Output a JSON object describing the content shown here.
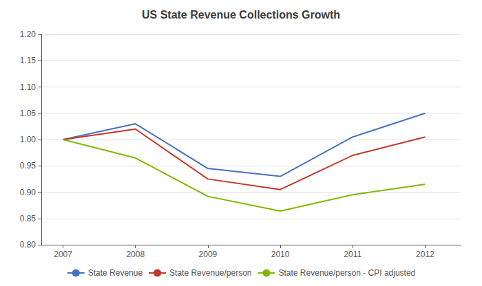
{
  "chart_data": {
    "type": "line",
    "title": "US State Revenue Collections Growth",
    "x": [
      2007,
      2008,
      2009,
      2010,
      2011,
      2012
    ],
    "xlim": [
      2006.7,
      2012.5
    ],
    "xticks": [
      2007,
      2008,
      2009,
      2010,
      2011,
      2012
    ],
    "series": [
      {
        "name": "State Revenue",
        "color": "#4472C4",
        "values": [
          1.0,
          1.03,
          0.945,
          0.93,
          1.005,
          1.05
        ]
      },
      {
        "name": "State Revenue/person",
        "color": "#C0392B",
        "values": [
          1.0,
          1.02,
          0.925,
          0.905,
          0.97,
          1.005
        ]
      },
      {
        "name": "State Revenue/person - CPI adjusted",
        "color": "#7FBA00",
        "values": [
          1.0,
          0.965,
          0.892,
          0.864,
          0.895,
          0.915
        ]
      }
    ],
    "ylim": [
      0.8,
      1.2
    ],
    "yticks": [
      {
        "value": 0.8,
        "label": "0.80"
      },
      0.85,
      {
        "value": 0.9,
        "label": "0.90"
      },
      0.95,
      {
        "value": 1.0,
        "label": "1.00"
      },
      1.05,
      {
        "value": 1.1,
        "label": "1.10"
      },
      1.15,
      {
        "value": 1.2,
        "label": "1.20"
      }
    ],
    "grid": "y",
    "legend": "bottom"
  }
}
